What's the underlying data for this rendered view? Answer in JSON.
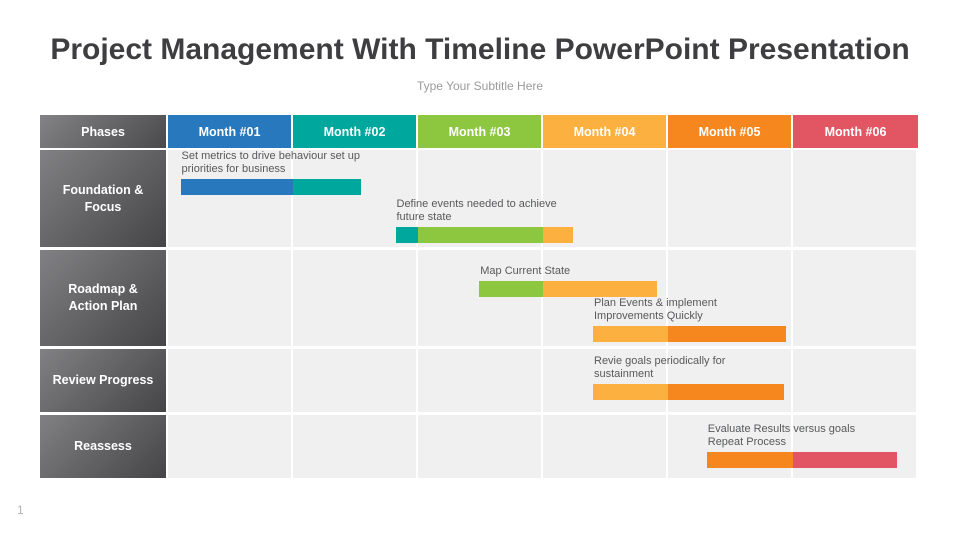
{
  "slide": {
    "title": "Project Management With Timeline PowerPoint Presentation",
    "subtitle": "Type Your Subtitle Here",
    "page_number": "1"
  },
  "colors": {
    "blue": "#2878BE",
    "teal": "#00A79D",
    "green": "#8DC63F",
    "amber": "#FBB040",
    "orange": "#F6871F",
    "red": "#E25563",
    "phase_gray_light": "#818184",
    "phase_gray_dark": "#454547",
    "body_cell": "#F0F0F0",
    "task_text": "#58595B"
  },
  "table": {
    "corner_header": "Phases",
    "columns": [
      {
        "label": "Month #01",
        "color": "blue"
      },
      {
        "label": "Month #02",
        "color": "teal"
      },
      {
        "label": "Month #03",
        "color": "green"
      },
      {
        "label": "Month #04",
        "color": "amber"
      },
      {
        "label": "Month #05",
        "color": "orange"
      },
      {
        "label": "Month #06",
        "color": "red"
      }
    ]
  },
  "chart_data": {
    "type": "bar",
    "variant": "gantt-timeline",
    "title": "Project Management With Timeline PowerPoint Presentation",
    "x_unit": "months",
    "x_range": [
      0,
      6
    ],
    "x_tick_labels": [
      "Month #01",
      "Month #02",
      "Month #03",
      "Month #04",
      "Month #05",
      "Month #06"
    ],
    "y_categories": [
      "Foundation & Focus",
      "Roadmap & Action Plan",
      "Review Progress",
      "Reassess"
    ],
    "phases": [
      {
        "name": "Foundation &\nFocus",
        "tasks": [
          {
            "label": "Set metrics to drive behaviour set up\npriorities for business",
            "start": 0.1,
            "end": 1.54,
            "segments": [
              {
                "color": "blue",
                "from": 0.1,
                "to": 1.0
              },
              {
                "color": "teal",
                "from": 1.0,
                "to": 1.54
              }
            ]
          },
          {
            "label": "Define events needed to achieve\nfuture state",
            "start": 1.82,
            "end": 3.24,
            "segments": [
              {
                "color": "teal",
                "from": 1.82,
                "to": 2.0
              },
              {
                "color": "green",
                "from": 2.0,
                "to": 3.0
              },
              {
                "color": "amber",
                "from": 3.0,
                "to": 3.24
              }
            ]
          }
        ]
      },
      {
        "name": "Roadmap &\nAction Plan",
        "tasks": [
          {
            "label": "Map Current State",
            "start": 2.49,
            "end": 3.91,
            "segments": [
              {
                "color": "green",
                "from": 2.49,
                "to": 3.0
              },
              {
                "color": "amber",
                "from": 3.0,
                "to": 3.91
              }
            ]
          },
          {
            "label": "Plan Events & implement\nImprovements Quickly",
            "start": 3.4,
            "end": 4.94,
            "segments": [
              {
                "color": "amber",
                "from": 3.4,
                "to": 4.0
              },
              {
                "color": "orange",
                "from": 4.0,
                "to": 4.94
              }
            ]
          }
        ]
      },
      {
        "name": "Review Progress",
        "tasks": [
          {
            "label": "Revie goals periodically for\nsustainment",
            "start": 3.4,
            "end": 4.93,
            "segments": [
              {
                "color": "amber",
                "from": 3.4,
                "to": 4.0
              },
              {
                "color": "orange",
                "from": 4.0,
                "to": 4.93
              }
            ]
          }
        ]
      },
      {
        "name": "Reassess",
        "tasks": [
          {
            "label": "Evaluate Results versus goals\nRepeat Process",
            "start": 4.31,
            "end": 5.83,
            "segments": [
              {
                "color": "orange",
                "from": 4.31,
                "to": 5.0
              },
              {
                "color": "red",
                "from": 5.0,
                "to": 5.83
              }
            ]
          }
        ]
      }
    ]
  }
}
